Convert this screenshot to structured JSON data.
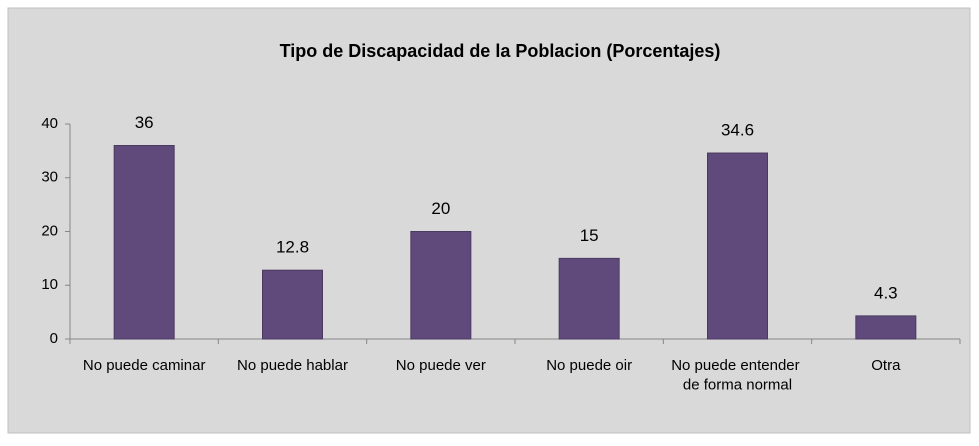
{
  "chart_data": {
    "type": "bar",
    "title": "Tipo de Discapacidad de la Poblacion (Porcentajes)",
    "categories": [
      "No puede caminar",
      "No puede hablar",
      "No puede ver",
      "No puede oir",
      "No puede entender de forma normal",
      "Otra"
    ],
    "values": [
      36,
      12.8,
      20,
      15,
      34.6,
      4.3
    ],
    "color": "#604a7b",
    "ylim": [
      0,
      40
    ],
    "yticks": [
      0,
      10,
      20,
      30,
      40
    ],
    "grid": false
  }
}
